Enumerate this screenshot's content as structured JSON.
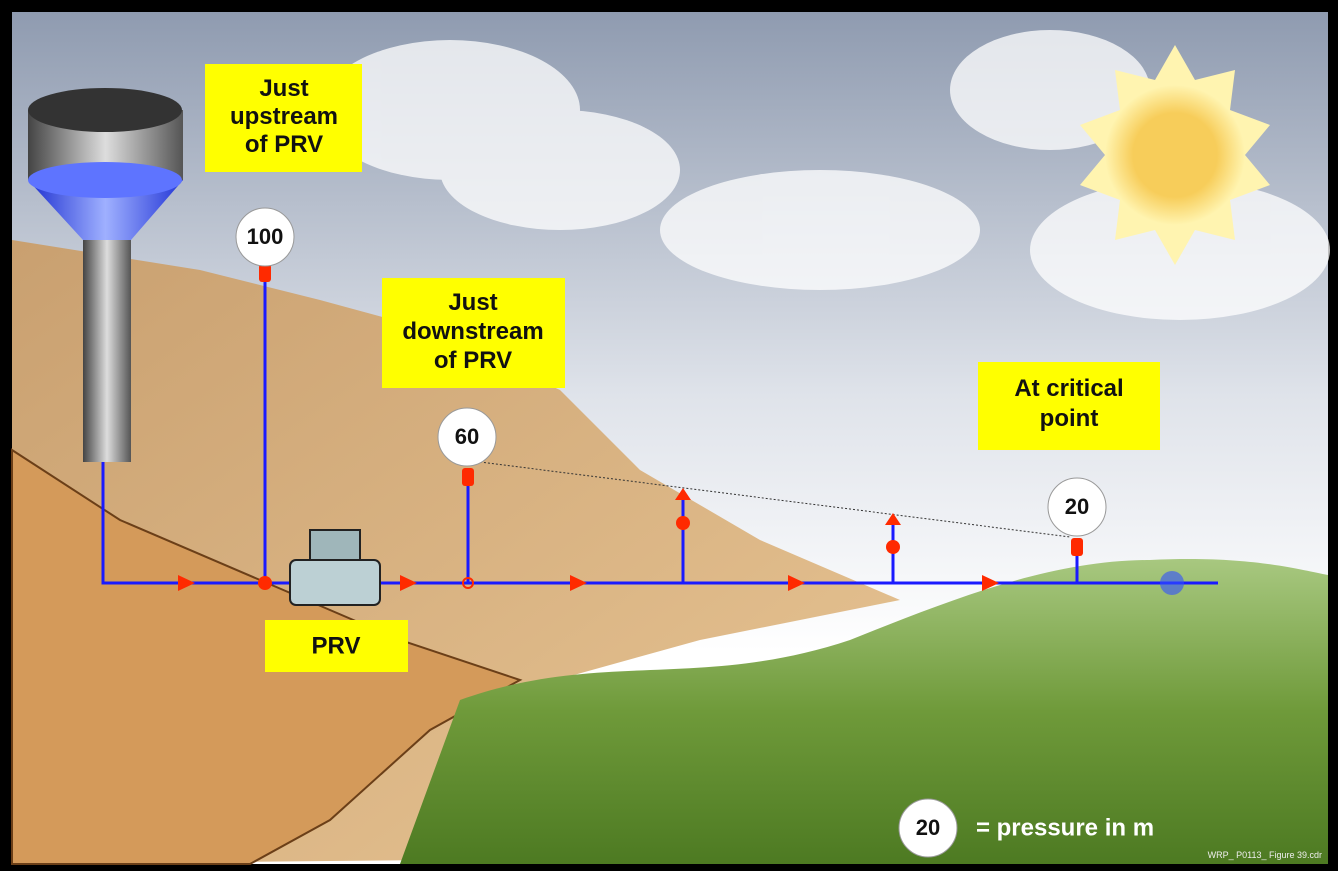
{
  "callouts": [
    {
      "lines": [
        "Just",
        "upstream",
        "of PRV"
      ]
    },
    {
      "lines": [
        "Just",
        "downstream",
        "of PRV"
      ]
    },
    {
      "lines": [
        "At critical",
        "point"
      ]
    },
    {
      "lines": [
        "PRV"
      ]
    }
  ],
  "gauges": [
    {
      "value": 100
    },
    {
      "value": 60
    },
    {
      "value": 20
    }
  ],
  "legend": {
    "symbol": 20,
    "text": "= pressure in m"
  },
  "footer": "WRP_ P0113_ Figure 39.cdr"
}
